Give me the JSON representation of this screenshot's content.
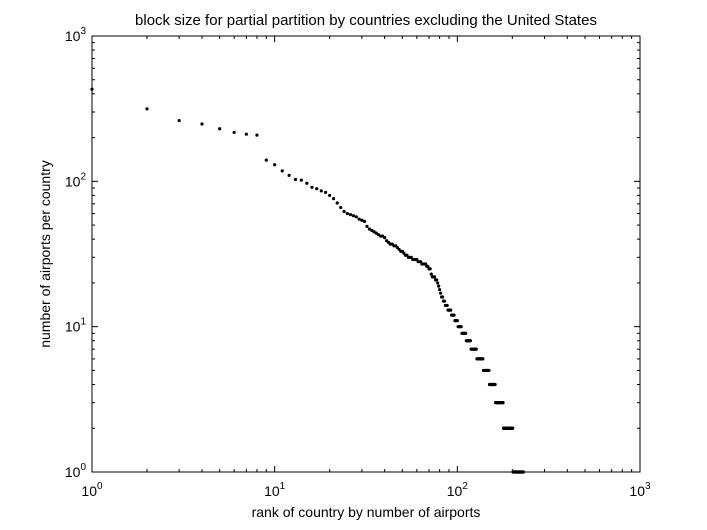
{
  "chart_data": {
    "type": "scatter",
    "title": "block size for partial partition by countries excluding the United States",
    "xlabel": "rank of country by number of airports",
    "ylabel": "number of airports per country",
    "xscale": "log",
    "yscale": "log",
    "xlim": [
      1,
      1000
    ],
    "ylim": [
      1,
      1000
    ],
    "grid": false,
    "legend": "none",
    "colors": {
      "marker": "#000000",
      "axes": "#000000",
      "background": "#ffffff"
    },
    "x_ticks": [
      {
        "value": 1,
        "base": "10",
        "exp": "0"
      },
      {
        "value": 10,
        "base": "10",
        "exp": "1"
      },
      {
        "value": 100,
        "base": "10",
        "exp": "2"
      },
      {
        "value": 1000,
        "base": "10",
        "exp": "3"
      }
    ],
    "y_ticks": [
      {
        "value": 1,
        "base": "10",
        "exp": "0"
      },
      {
        "value": 10,
        "base": "10",
        "exp": "1"
      },
      {
        "value": 100,
        "base": "10",
        "exp": "2"
      },
      {
        "value": 1000,
        "base": "10",
        "exp": "3"
      }
    ],
    "series": [
      {
        "points": [
          [
            1,
            430
          ],
          [
            2,
            315
          ],
          [
            3,
            262
          ],
          [
            4,
            248
          ],
          [
            5,
            230
          ],
          [
            6,
            217
          ],
          [
            7,
            211
          ],
          [
            8,
            208
          ],
          [
            9,
            140
          ],
          [
            10,
            130
          ],
          [
            11,
            118
          ],
          [
            12,
            110
          ],
          [
            13,
            103
          ],
          [
            14,
            102
          ],
          [
            15,
            97
          ],
          [
            16,
            91
          ],
          [
            17,
            89
          ],
          [
            18,
            86
          ],
          [
            19,
            84
          ],
          [
            20,
            80
          ],
          [
            21,
            76
          ],
          [
            22,
            71
          ],
          [
            23,
            66
          ],
          [
            24,
            62
          ],
          [
            25,
            60
          ],
          [
            26,
            59
          ],
          [
            27,
            58
          ],
          [
            28,
            57
          ],
          [
            29,
            55
          ],
          [
            30,
            54
          ],
          [
            31,
            53
          ],
          [
            32,
            49
          ],
          [
            33,
            47
          ],
          [
            34,
            46
          ],
          [
            35,
            45
          ],
          [
            36,
            44
          ],
          [
            37,
            43
          ],
          [
            38,
            42
          ],
          [
            39,
            42
          ],
          [
            40,
            41
          ],
          [
            41,
            39
          ],
          [
            42,
            38
          ],
          [
            43,
            37
          ],
          [
            44,
            37
          ],
          [
            45,
            36
          ],
          [
            46,
            36
          ],
          [
            47,
            35
          ],
          [
            48,
            34
          ],
          [
            49,
            33
          ],
          [
            50,
            33
          ],
          [
            51,
            32
          ],
          [
            52,
            31
          ],
          [
            53,
            31
          ],
          [
            54,
            30
          ],
          [
            55,
            30
          ],
          [
            56,
            30
          ],
          [
            57,
            29
          ],
          [
            58,
            29
          ],
          [
            59,
            29
          ],
          [
            60,
            29
          ],
          [
            61,
            28
          ],
          [
            62,
            28
          ],
          [
            63,
            28
          ],
          [
            64,
            27
          ],
          [
            65,
            27
          ],
          [
            66,
            27
          ],
          [
            67,
            27
          ],
          [
            68,
            26
          ],
          [
            69,
            26
          ],
          [
            70,
            25
          ],
          [
            71,
            25
          ],
          [
            72,
            23
          ],
          [
            73,
            22
          ],
          [
            74,
            22
          ],
          [
            75,
            22
          ],
          [
            76,
            21
          ],
          [
            77,
            21
          ],
          [
            78,
            20
          ],
          [
            79,
            19
          ],
          [
            80,
            18
          ],
          [
            81,
            17
          ],
          [
            82,
            16
          ],
          [
            83,
            16
          ],
          [
            84,
            15
          ],
          [
            85,
            15
          ],
          [
            86,
            14
          ],
          [
            87,
            14
          ],
          [
            88,
            14
          ],
          [
            89,
            13
          ],
          [
            90,
            13
          ],
          [
            91,
            13
          ],
          [
            92,
            13
          ],
          [
            93,
            12
          ],
          [
            94,
            12
          ],
          [
            95,
            12
          ],
          [
            96,
            12
          ],
          [
            97,
            11
          ],
          [
            98,
            11
          ],
          [
            99,
            11
          ],
          [
            100,
            11
          ],
          [
            101,
            10
          ],
          [
            102,
            10
          ],
          [
            103,
            10
          ],
          [
            104,
            10
          ],
          [
            105,
            10
          ],
          [
            106,
            9
          ],
          [
            107,
            9
          ],
          [
            108,
            9
          ],
          [
            109,
            9
          ],
          [
            110,
            9
          ],
          [
            111,
            9
          ],
          [
            112,
            8
          ],
          [
            113,
            8
          ],
          [
            114,
            8
          ],
          [
            115,
            8
          ],
          [
            116,
            8
          ],
          [
            117,
            8
          ],
          [
            118,
            8
          ],
          [
            119,
            7
          ],
          [
            120,
            7
          ],
          [
            121,
            7
          ],
          [
            122,
            7
          ],
          [
            123,
            7
          ],
          [
            124,
            7
          ],
          [
            125,
            7
          ],
          [
            126,
            7
          ],
          [
            127,
            7
          ],
          [
            128,
            6
          ],
          [
            129,
            6
          ],
          [
            130,
            6
          ],
          [
            131,
            6
          ],
          [
            132,
            6
          ],
          [
            133,
            6
          ],
          [
            134,
            6
          ],
          [
            135,
            6
          ],
          [
            136,
            6
          ],
          [
            137,
            6
          ],
          [
            138,
            6
          ],
          [
            139,
            5
          ],
          [
            140,
            5
          ],
          [
            141,
            5
          ],
          [
            142,
            5
          ],
          [
            143,
            5
          ],
          [
            144,
            5
          ],
          [
            145,
            5
          ],
          [
            146,
            5
          ],
          [
            147,
            5
          ],
          [
            148,
            5
          ],
          [
            149,
            5
          ],
          [
            150,
            4
          ],
          [
            151,
            4
          ],
          [
            152,
            4
          ],
          [
            153,
            4
          ],
          [
            154,
            4
          ],
          [
            155,
            4
          ],
          [
            156,
            4
          ],
          [
            157,
            4
          ],
          [
            158,
            4
          ],
          [
            159,
            4
          ],
          [
            160,
            4
          ],
          [
            161,
            4
          ],
          [
            162,
            3
          ],
          [
            163,
            3
          ],
          [
            164,
            3
          ],
          [
            165,
            3
          ],
          [
            166,
            3
          ],
          [
            167,
            3
          ],
          [
            168,
            3
          ],
          [
            169,
            3
          ],
          [
            170,
            3
          ],
          [
            171,
            3
          ],
          [
            172,
            3
          ],
          [
            173,
            3
          ],
          [
            174,
            3
          ],
          [
            175,
            3
          ],
          [
            176,
            3
          ],
          [
            177,
            3
          ],
          [
            178,
            3
          ],
          [
            179,
            2
          ],
          [
            180,
            2
          ],
          [
            181,
            2
          ],
          [
            182,
            2
          ],
          [
            183,
            2
          ],
          [
            184,
            2
          ],
          [
            185,
            2
          ],
          [
            186,
            2
          ],
          [
            187,
            2
          ],
          [
            188,
            2
          ],
          [
            189,
            2
          ],
          [
            190,
            2
          ],
          [
            191,
            2
          ],
          [
            192,
            2
          ],
          [
            193,
            2
          ],
          [
            194,
            2
          ],
          [
            195,
            2
          ],
          [
            196,
            2
          ],
          [
            197,
            2
          ],
          [
            198,
            2
          ],
          [
            199,
            2
          ],
          [
            200,
            2
          ],
          [
            201,
            2
          ],
          [
            202,
            1
          ],
          [
            203,
            1
          ],
          [
            204,
            1
          ],
          [
            205,
            1
          ],
          [
            206,
            1
          ],
          [
            207,
            1
          ],
          [
            208,
            1
          ],
          [
            209,
            1
          ],
          [
            210,
            1
          ],
          [
            211,
            1
          ],
          [
            212,
            1
          ],
          [
            213,
            1
          ],
          [
            214,
            1
          ],
          [
            215,
            1
          ],
          [
            216,
            1
          ],
          [
            217,
            1
          ],
          [
            218,
            1
          ],
          [
            219,
            1
          ],
          [
            220,
            1
          ],
          [
            221,
            1
          ],
          [
            222,
            1
          ],
          [
            223,
            1
          ],
          [
            224,
            1
          ],
          [
            225,
            1
          ],
          [
            226,
            1
          ],
          [
            227,
            1
          ],
          [
            228,
            1
          ],
          [
            229,
            1
          ],
          [
            230,
            1
          ]
        ]
      }
    ]
  }
}
